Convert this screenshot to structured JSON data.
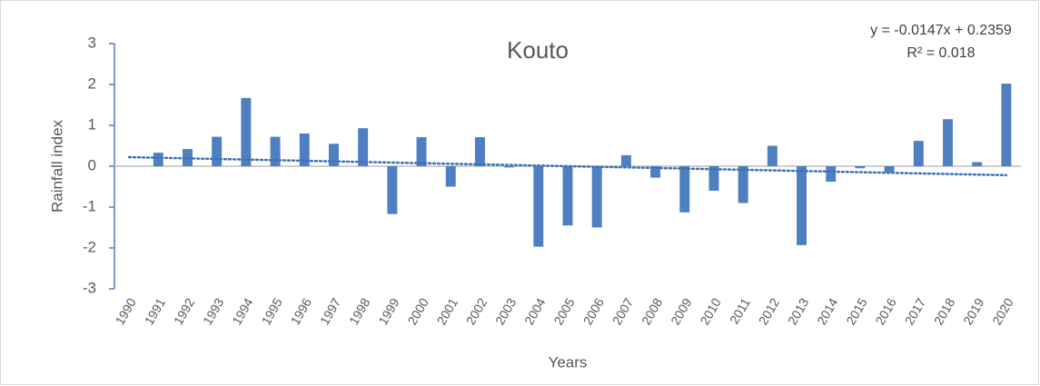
{
  "chart_data": {
    "type": "bar",
    "title": "Kouto",
    "x_label": "Years",
    "y_label": "Rainfall index",
    "categories": [
      "1990",
      "1991",
      "1992",
      "1993",
      "1994",
      "1995",
      "1996",
      "1997",
      "1998",
      "1999",
      "2000",
      "2001",
      "2002",
      "2003",
      "2004",
      "2005",
      "2006",
      "2007",
      "2008",
      "2009",
      "2010",
      "2011",
      "2012",
      "2013",
      "2014",
      "2015",
      "2016",
      "2017",
      "2018",
      "2019",
      "2020"
    ],
    "values": [
      0,
      0.33,
      0.42,
      0.72,
      1.67,
      0.72,
      0.8,
      0.55,
      0.93,
      -1.17,
      0.71,
      -0.5,
      0.71,
      -0.03,
      -1.97,
      -1.45,
      -1.5,
      0.27,
      -0.28,
      -1.13,
      -0.6,
      -0.9,
      0.5,
      -1.93,
      -0.38,
      -0.05,
      -0.15,
      0.62,
      1.15,
      0.1,
      2.02
    ],
    "color": "#4e7fc0",
    "ylim": [
      -3,
      3
    ],
    "yticks": [
      -3,
      -2,
      -1,
      0,
      1,
      2,
      3
    ],
    "grid": false,
    "trendline": {
      "equation": "y = -0.0147x + 0.2359",
      "r2_label": "R² = 0.018",
      "slope": -0.0147,
      "intercept": 0.2359,
      "color": "#3d72b8"
    }
  }
}
